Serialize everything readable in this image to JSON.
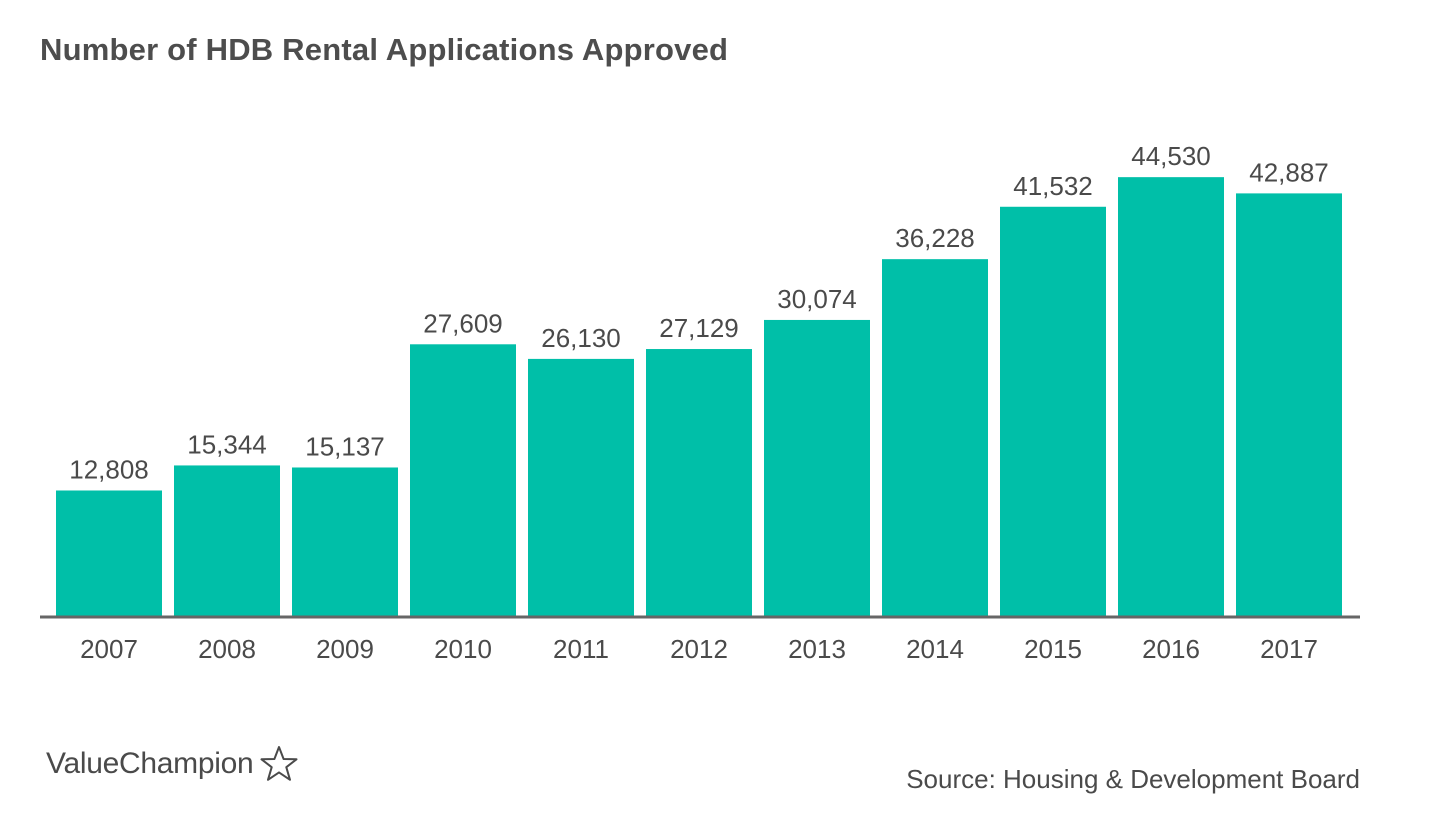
{
  "page": {
    "title": "Number of HDB Rental Applications Approved",
    "source": "Source: Housing & Development Board",
    "brand": {
      "name": "ValueChampion",
      "icon": "star-outline-icon"
    }
  },
  "colors": {
    "bar": "#00bfa8",
    "axis": "#666666",
    "text": "#4a4a4a",
    "title": "#4d4d4d"
  },
  "chart_data": {
    "type": "bar",
    "title": "Number of HDB Rental Applications Approved",
    "xlabel": "",
    "ylabel": "",
    "categories": [
      "2007",
      "2008",
      "2009",
      "2010",
      "2011",
      "2012",
      "2013",
      "2014",
      "2015",
      "2016",
      "2017"
    ],
    "values": [
      12808,
      15344,
      15137,
      27609,
      26130,
      27129,
      30074,
      36228,
      41532,
      44530,
      42887
    ],
    "value_labels": [
      "12,808",
      "15,344",
      "15,137",
      "27,609",
      "26,130",
      "27,129",
      "30,074",
      "36,228",
      "41,532",
      "44,530",
      "42,887"
    ],
    "ylim": [
      0,
      50000
    ],
    "grid": false,
    "legend": "none",
    "y_axis_visible": false,
    "data_labels": "above-bars"
  }
}
